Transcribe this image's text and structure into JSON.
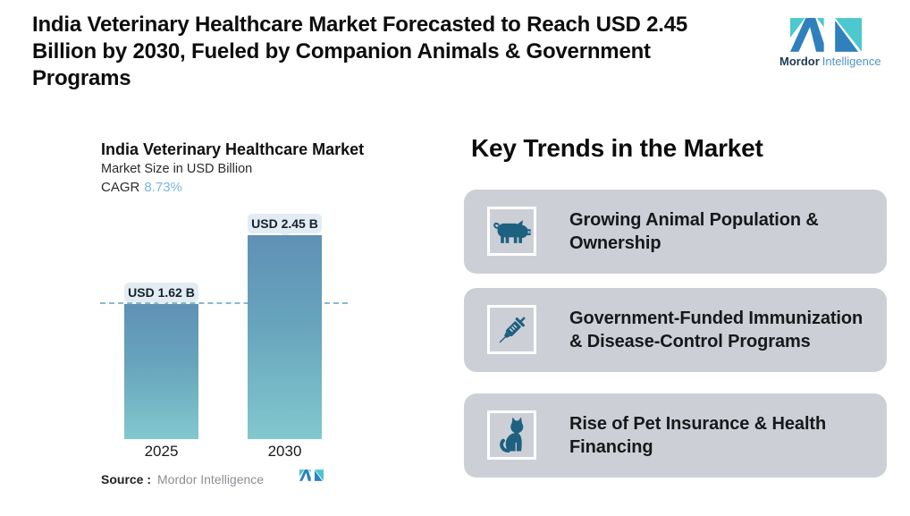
{
  "page": {
    "title": "India Veterinary Healthcare Market Forecasted to Reach USD 2.45 Billion by 2030, Fueled by Companion Animals & Government Programs",
    "title_lines": [
      "India Veterinary Healthcare Market Forecasted to Reach USD 2.45",
      "Billion by 2030, Fueled by Companion Animals & Government",
      "Programs"
    ]
  },
  "brand": {
    "name_bold": "Mordor",
    "name_light": "Intelligence"
  },
  "chart_data": {
    "type": "bar",
    "title": "India Veterinary Healthcare Market",
    "subtitle": "Market Size in USD Billion",
    "cagr_label": "CAGR",
    "cagr_value": "8.73%",
    "categories": [
      "2025",
      "2030"
    ],
    "values": [
      1.62,
      2.45
    ],
    "data_labels": [
      "USD 1.62 B",
      "USD 2.45 B"
    ],
    "unit": "USD Billion",
    "ylim": [
      0,
      2.6
    ],
    "grid": false,
    "reference_line": {
      "at_value": 1.62,
      "style": "dashed"
    },
    "legend": "none",
    "source_label": "Source :",
    "source_value": "Mordor Intelligence"
  },
  "trends": {
    "heading": "Key Trends in the Market",
    "items": [
      {
        "icon": "pig-icon",
        "text": "Growing Animal Population & Ownership",
        "lines": [
          "Growing Animal Population &",
          "Ownership"
        ]
      },
      {
        "icon": "syringe-icon",
        "text": "Government-Funded Immunization & Disease-Control Programs",
        "lines": [
          "Government-Funded Immunization",
          "& Disease-Control Programs"
        ]
      },
      {
        "icon": "cat-icon",
        "text": "Rise of Pet Insurance & Health Financing",
        "lines": [
          "Rise of Pet Insurance & Health",
          "Financing"
        ]
      }
    ]
  },
  "colors": {
    "brand_teal": "#4cc8ce",
    "brand_blue": "#2f80bd",
    "bar_top": "#6090b6",
    "bar_bottom": "#82c8ce",
    "cagr_value": "#79b7d8",
    "card_bg": "#ccd0d6",
    "trend_icon": "#1e607f",
    "dashed_line": "#8ab8d0",
    "pill_bg": "#e3ecf2"
  }
}
